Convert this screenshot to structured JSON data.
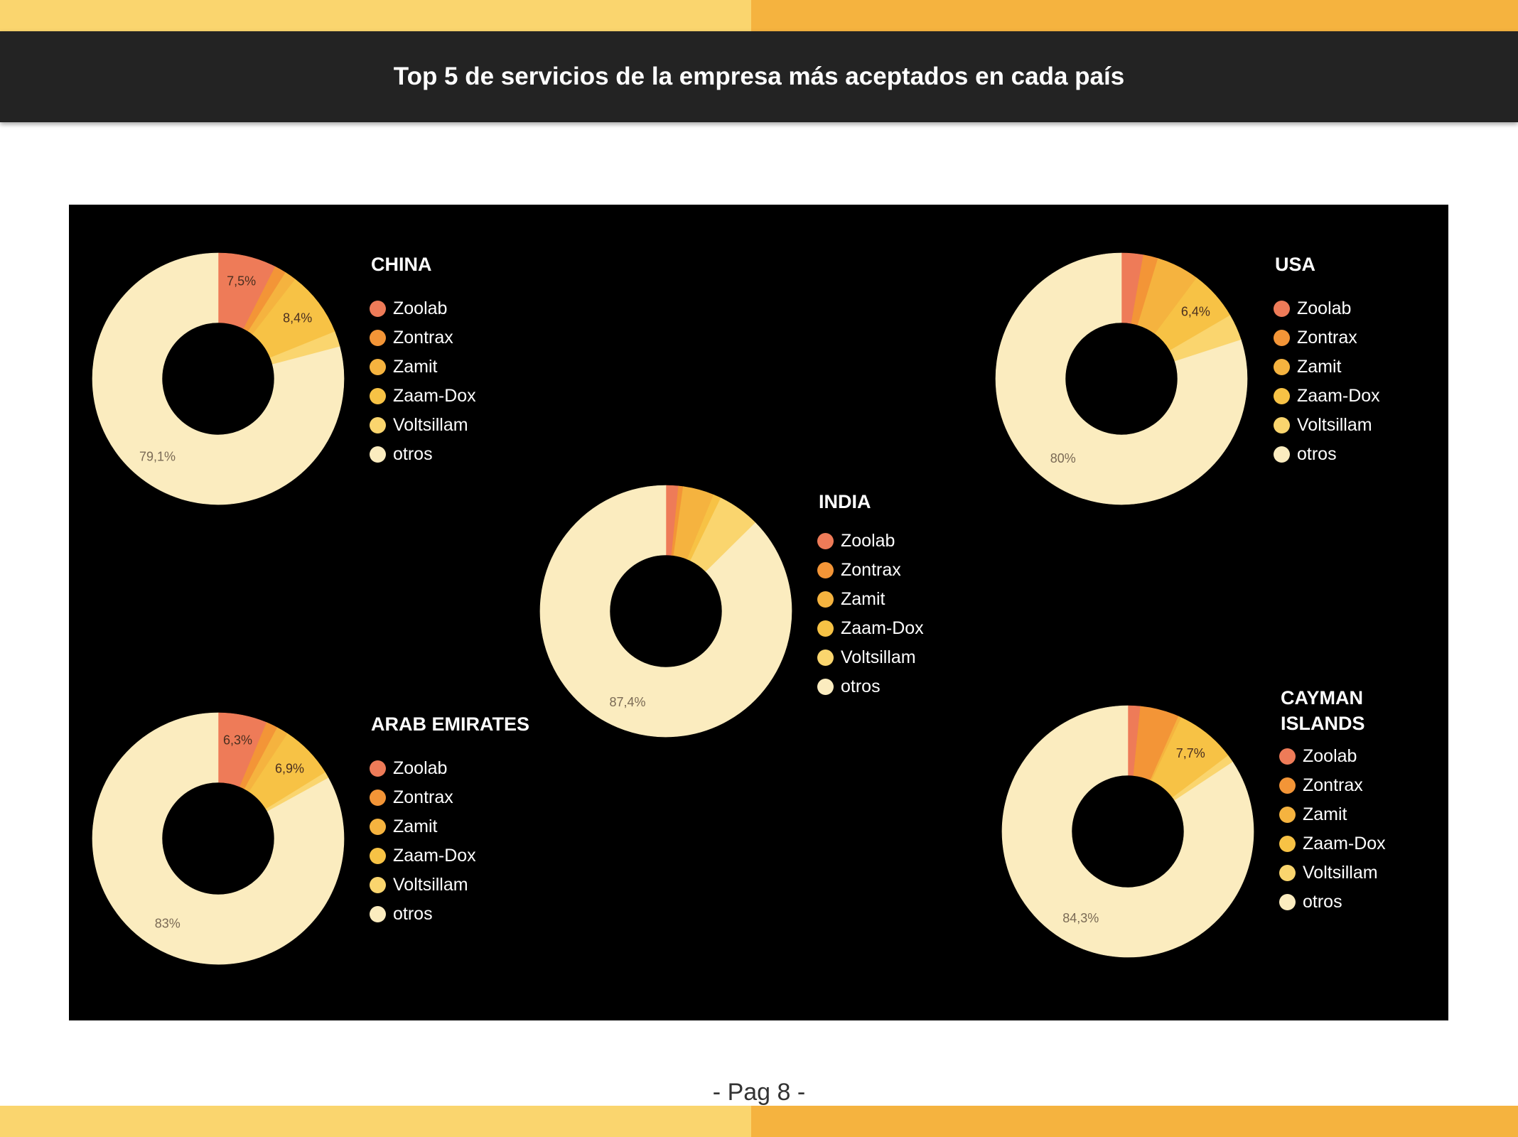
{
  "page": {
    "title": "Top 5 de servicios de la empresa más aceptados en cada país",
    "footer": "- Pag 8 -"
  },
  "legend": {
    "items": [
      "Zoolab",
      "Zontrax",
      "Zamit",
      "Zaam-Dox",
      "Voltsillam",
      "otros"
    ]
  },
  "colors": {
    "Zoolab": "#ee7b58",
    "Zontrax": "#f39537",
    "Zamit": "#f5b33f",
    "Zaam-Dox": "#f7c245",
    "Voltsillam": "#fad56e",
    "otros": "#fbecbf",
    "background": "#000000",
    "band_light": "#fad56e",
    "band_dark": "#f5b33f",
    "header": "#232323"
  },
  "chart_data": [
    {
      "type": "pie",
      "donut": true,
      "title": "CHINA",
      "categories": [
        "Zoolab",
        "Zontrax",
        "Zamit",
        "Zaam-Dox",
        "Voltsillam",
        "otros"
      ],
      "values": [
        7.5,
        1.5,
        1.5,
        8.4,
        2.0,
        79.1
      ],
      "labels": [
        "7,5%",
        "",
        "",
        "8,4%",
        "",
        "79,1%"
      ]
    },
    {
      "type": "pie",
      "donut": true,
      "title": "USA",
      "categories": [
        "Zoolab",
        "Zontrax",
        "Zamit",
        "Zaam-Dox",
        "Voltsillam",
        "otros"
      ],
      "values": [
        2.8,
        1.9,
        5.5,
        6.4,
        3.4,
        80
      ],
      "labels": [
        "",
        "",
        "",
        "6,4%",
        "",
        "80%"
      ]
    },
    {
      "type": "pie",
      "donut": true,
      "title": "INDIA",
      "categories": [
        "Zoolab",
        "Zontrax",
        "Zamit",
        "Zaam-Dox",
        "Voltsillam",
        "otros"
      ],
      "values": [
        1.6,
        0.6,
        4.0,
        1.0,
        5.4,
        87.4
      ],
      "labels": [
        "",
        "",
        "",
        "",
        "",
        "87,4%"
      ]
    },
    {
      "type": "pie",
      "donut": true,
      "title": "ARAB EMIRATES",
      "categories": [
        "Zoolab",
        "Zontrax",
        "Zamit",
        "Zaam-Dox",
        "Voltsillam",
        "otros"
      ],
      "values": [
        6.3,
        1.5,
        1.5,
        6.9,
        0.8,
        83
      ],
      "labels": [
        "6,3%",
        "",
        "",
        "6,9%",
        "",
        "83%"
      ]
    },
    {
      "type": "pie",
      "donut": true,
      "title": "CAYMAN ISLANDS",
      "categories": [
        "Zoolab",
        "Zontrax",
        "Zamit",
        "Zaam-Dox",
        "Voltsillam",
        "otros"
      ],
      "values": [
        1.6,
        5.0,
        0.4,
        7.7,
        1.0,
        84.3
      ],
      "labels": [
        "",
        "",
        "",
        "7,7%",
        "",
        "84,3%"
      ]
    }
  ]
}
